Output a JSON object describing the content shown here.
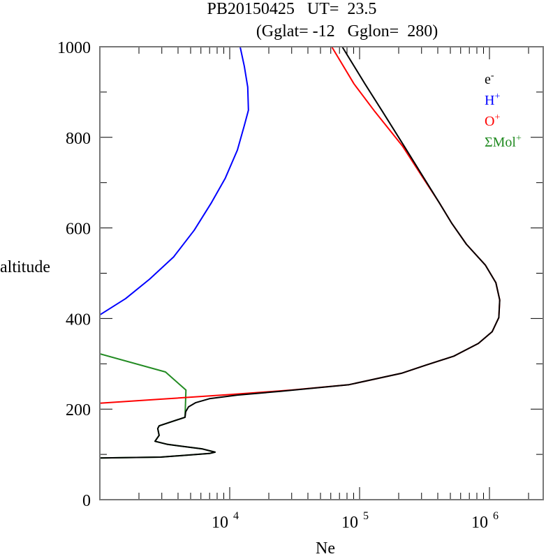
{
  "chart_data": {
    "type": "line",
    "title": "PB20150425   UT=  23.5",
    "subtitle": "(Gglat= -12   Gglon=  280)",
    "xlabel": "Ne",
    "ylabel": "altitude",
    "xscale": "log",
    "xlim": [
      1000,
      2600000
    ],
    "ylim": [
      0,
      1000
    ],
    "x_tick_labels": [
      {
        "base": "10",
        "exp": "4",
        "value": 10000
      },
      {
        "base": "10",
        "exp": "5",
        "value": 100000
      },
      {
        "base": "10",
        "exp": "6",
        "value": 1000000
      }
    ],
    "y_ticks": [
      0,
      200,
      400,
      600,
      800,
      1000
    ],
    "legend_placement": "top-right",
    "series": [
      {
        "name": "e-",
        "label": "e",
        "sup": "-",
        "color": "#000000",
        "points": [
          [
            1000,
            92
          ],
          [
            2940,
            94
          ],
          [
            6980,
            102
          ],
          [
            7710,
            105
          ],
          [
            6170,
            112
          ],
          [
            3330,
            122
          ],
          [
            2660,
            129
          ],
          [
            2860,
            142
          ],
          [
            2790,
            157
          ],
          [
            2860,
            163
          ],
          [
            4530,
            182
          ],
          [
            4580,
            194
          ],
          [
            4820,
            205
          ],
          [
            5450,
            214
          ],
          [
            6980,
            223
          ],
          [
            11460,
            231
          ],
          [
            24100,
            239
          ],
          [
            83000,
            254
          ],
          [
            210000,
            279
          ],
          [
            324000,
            297
          ],
          [
            532000,
            317
          ],
          [
            821000,
            345
          ],
          [
            1050000,
            371
          ],
          [
            1180000,
            402
          ],
          [
            1200000,
            441
          ],
          [
            1120000,
            479
          ],
          [
            929000,
            518
          ],
          [
            665000,
            564
          ],
          [
            513000,
            610
          ],
          [
            410000,
            656
          ],
          [
            301000,
            718
          ],
          [
            221000,
            780
          ],
          [
            150000,
            857
          ],
          [
            110000,
            918
          ],
          [
            73500,
            1000
          ]
        ]
      },
      {
        "name": "H+",
        "label": "H",
        "sup": "+",
        "color": "#0000ff",
        "points": [
          [
            1000,
            408
          ],
          [
            1580,
            444
          ],
          [
            2420,
            487
          ],
          [
            3700,
            536
          ],
          [
            5330,
            595
          ],
          [
            7240,
            656
          ],
          [
            9250,
            710
          ],
          [
            11460,
            772
          ],
          [
            12950,
            826
          ],
          [
            13940,
            860
          ],
          [
            13760,
            911
          ],
          [
            12950,
            957
          ],
          [
            12030,
            1000
          ]
        ]
      },
      {
        "name": "O+",
        "label": "O",
        "sup": "+",
        "color": "#ff0000",
        "points": [
          [
            1000,
            213
          ],
          [
            3000,
            222
          ],
          [
            10000,
            232
          ],
          [
            30000,
            242
          ],
          [
            83000,
            254
          ],
          [
            210000,
            279
          ],
          [
            324000,
            297
          ],
          [
            532000,
            317
          ],
          [
            821000,
            345
          ],
          [
            1050000,
            371
          ],
          [
            1180000,
            402
          ],
          [
            1200000,
            441
          ],
          [
            1120000,
            479
          ],
          [
            929000,
            518
          ],
          [
            665000,
            564
          ],
          [
            513000,
            610
          ],
          [
            410000,
            656
          ],
          [
            296000,
            718
          ],
          [
            215000,
            780
          ],
          [
            131000,
            857
          ],
          [
            90600,
            918
          ],
          [
            61000,
            1000
          ]
        ]
      },
      {
        "name": "ΣMol+",
        "label": "ΣMol",
        "sup": "+",
        "color": "#228b22",
        "points": [
          [
            1000,
            322
          ],
          [
            3200,
            282
          ],
          [
            4600,
            242
          ],
          [
            4530,
            182
          ],
          [
            2860,
            163
          ],
          [
            2790,
            157
          ],
          [
            2860,
            142
          ],
          [
            2660,
            129
          ],
          [
            3330,
            122
          ],
          [
            6170,
            112
          ],
          [
            7710,
            105
          ],
          [
            6980,
            102
          ],
          [
            2940,
            94
          ],
          [
            1000,
            92
          ]
        ]
      }
    ]
  }
}
